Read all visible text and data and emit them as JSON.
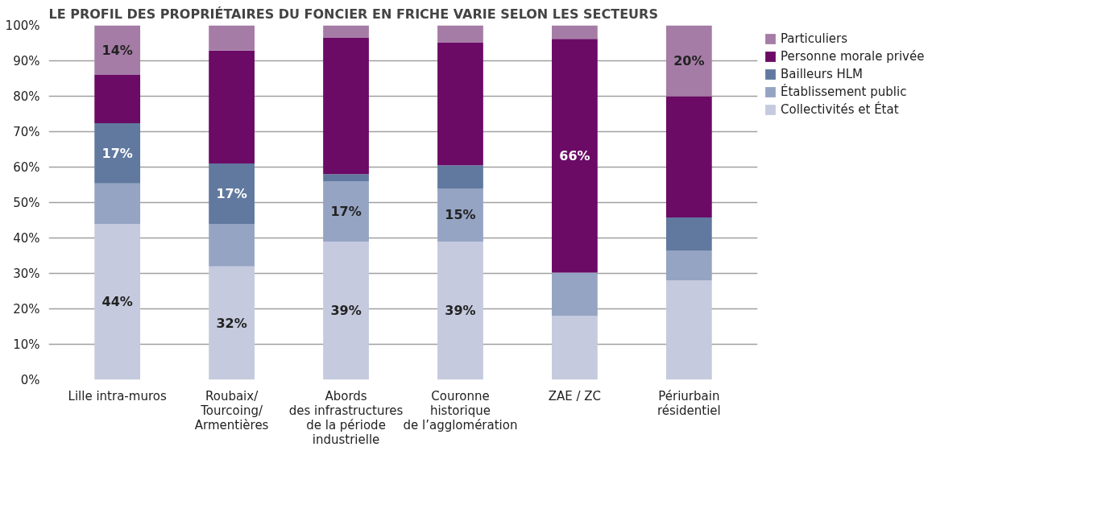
{
  "chart_data": {
    "type": "bar",
    "stacked": true,
    "title": "LE PROFIL DES PROPRIÉTAIRES DU FONCIER EN FRICHE VARIE SELON LES SECTEURS",
    "categories": [
      "Lille intra-muros",
      "Roubaix/\nTourcoing/\nArmentières",
      "Abords\ndes infrastructures\nde la période\nindustrielle",
      "Couronne\nhistorique\nde l’agglomération",
      "ZAE / ZC",
      "Périurbain\nrésidentiel"
    ],
    "series": [
      {
        "name": "Collectivités et État",
        "color": "#c5cade",
        "values": [
          44,
          32,
          39,
          39,
          18,
          28
        ],
        "value_labels": [
          "44%",
          "32%",
          "39%",
          "39%",
          null,
          null
        ]
      },
      {
        "name": "Établissement public",
        "color": "#95a4c3",
        "values": [
          11.4,
          12,
          17,
          15,
          12.2,
          8.5
        ],
        "value_labels": [
          null,
          null,
          "17%",
          "15%",
          null,
          null
        ]
      },
      {
        "name": "Bailleurs HLM",
        "color": "#61799f",
        "values": [
          17,
          17,
          2,
          6.5,
          0,
          9.3
        ],
        "value_labels": [
          "17%",
          "17%",
          null,
          null,
          null,
          null
        ]
      },
      {
        "name": "Personne morale privée",
        "color": "#6b0b66",
        "values": [
          13.6,
          31.9,
          38.6,
          34.7,
          66,
          34.2
        ],
        "value_labels": [
          null,
          null,
          null,
          null,
          "66%",
          null
        ]
      },
      {
        "name": "Particuliers",
        "color": "#a57ca6",
        "values": [
          14,
          7.1,
          3.4,
          4.8,
          3.8,
          20
        ],
        "value_labels": [
          "14%",
          null,
          null,
          null,
          null,
          "20%"
        ]
      }
    ],
    "ylim": [
      0,
      100
    ],
    "yticks": [
      {
        "value": 0,
        "label": "0%"
      },
      {
        "value": 10,
        "label": "10%"
      },
      {
        "value": 20,
        "label": "20%"
      },
      {
        "value": 30,
        "label": "30%"
      },
      {
        "value": 40,
        "label": "40%"
      },
      {
        "value": 50,
        "label": "50%"
      },
      {
        "value": 60,
        "label": "60%"
      },
      {
        "value": 70,
        "label": "70%"
      },
      {
        "value": 80,
        "label": "80%"
      },
      {
        "value": 90,
        "label": "90%"
      },
      {
        "value": 100,
        "label": "100%"
      }
    ],
    "grid": "y",
    "legend": "top right"
  }
}
